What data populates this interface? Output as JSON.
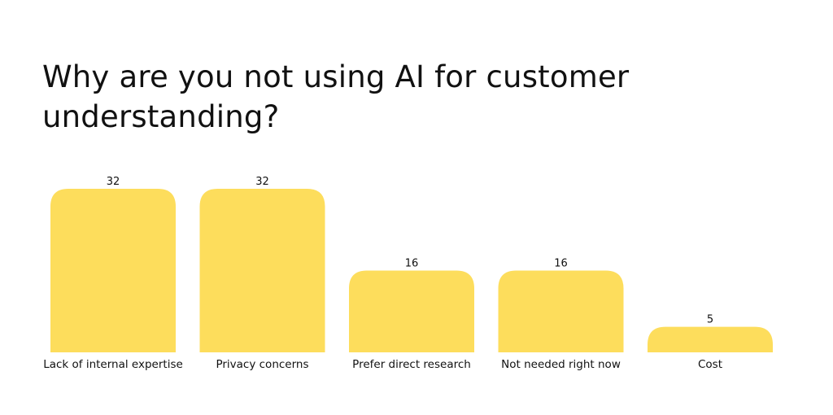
{
  "chart_data": {
    "type": "bar",
    "title": "Why are you not using AI for customer understanding?",
    "categories": [
      "Lack of internal expertise",
      "Privacy concerns",
      "Prefer direct research",
      "Not needed right now",
      "Cost"
    ],
    "values": [
      32,
      32,
      16,
      16,
      5
    ],
    "data_labels": true,
    "grid": false,
    "legend": "none",
    "ylim": [
      0,
      32
    ],
    "bar_color": "#FDDD5C",
    "text_color": "#111111"
  }
}
